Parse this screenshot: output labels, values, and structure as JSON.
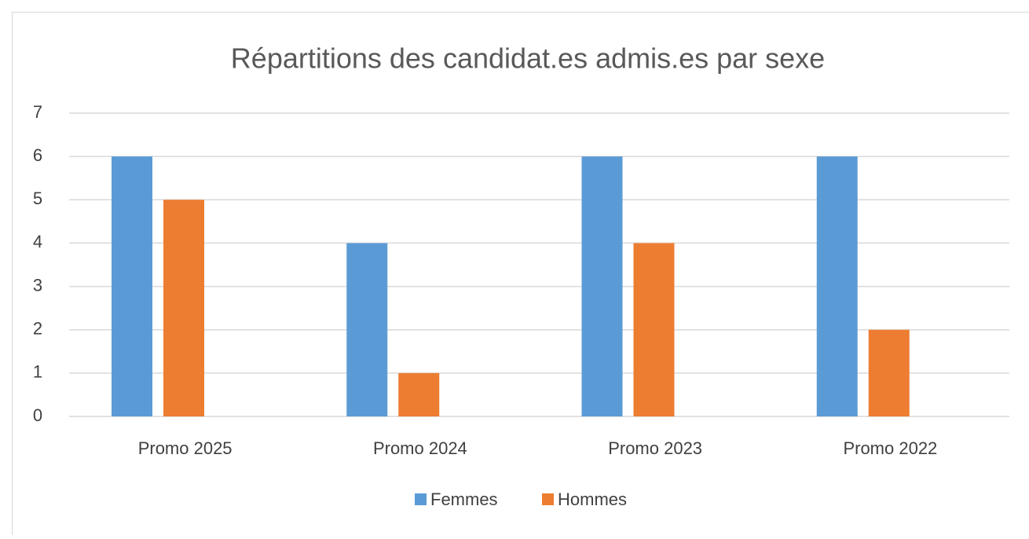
{
  "chart_data": {
    "type": "bar",
    "title": "Répartitions des candidat.es admis.es par sexe",
    "categories": [
      "Promo 2025",
      "Promo 2024",
      "Promo 2023",
      "Promo 2022"
    ],
    "series": [
      {
        "name": "Femmes",
        "color": "#5b9bd5",
        "values": [
          6,
          4,
          6,
          6
        ]
      },
      {
        "name": "Hommes",
        "color": "#ed7d31",
        "values": [
          5,
          1,
          4,
          2
        ]
      }
    ],
    "ylim": [
      0,
      7
    ],
    "yticks": [
      0,
      1,
      2,
      3,
      4,
      5,
      6,
      7
    ],
    "grid": true,
    "legend": "bottom"
  }
}
